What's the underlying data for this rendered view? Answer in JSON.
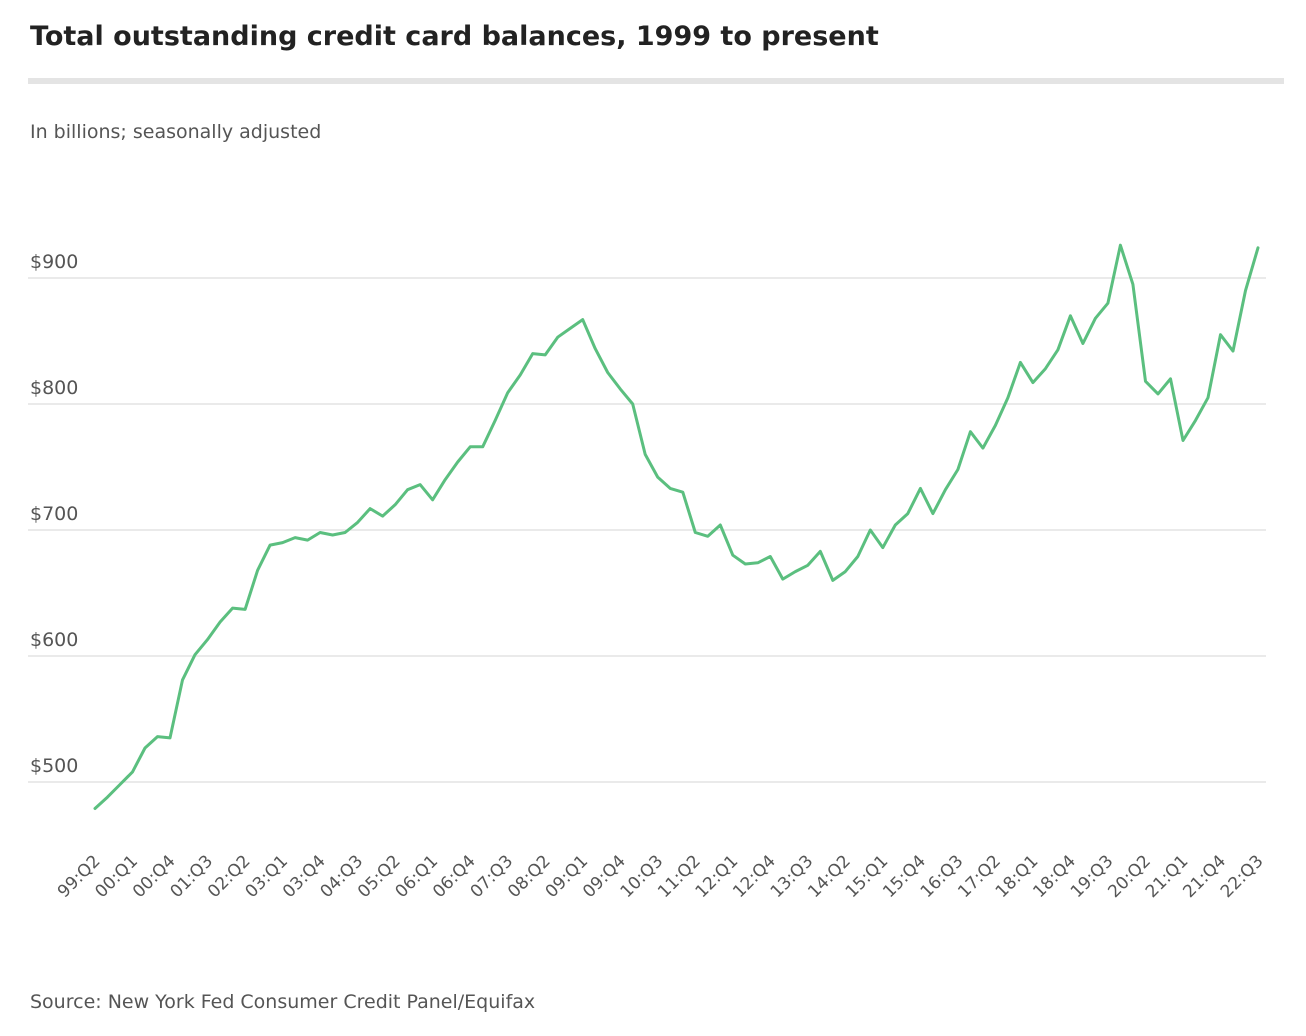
{
  "chart_data": {
    "type": "line",
    "title": "Total outstanding credit card balances, 1999 to present",
    "subtitle": "In billions; seasonally adjusted",
    "source": "Source: New York Fed Consumer Credit Panel/Equifax",
    "categories": [
      "99:Q2",
      null,
      null,
      "00:Q1",
      null,
      null,
      "00:Q4",
      null,
      null,
      "01:Q3",
      null,
      null,
      "02:Q2",
      null,
      null,
      "03:Q1",
      null,
      null,
      "03:Q4",
      null,
      null,
      "04:Q3",
      null,
      null,
      "05:Q2",
      null,
      null,
      "06:Q1",
      null,
      null,
      "06:Q4",
      null,
      null,
      "07:Q3",
      null,
      null,
      "08:Q2",
      null,
      null,
      "09:Q1",
      null,
      null,
      "09:Q4",
      null,
      null,
      "10:Q3",
      null,
      null,
      "11:Q2",
      null,
      null,
      "12:Q1",
      null,
      null,
      "12:Q4",
      null,
      null,
      "13:Q3",
      null,
      null,
      "14:Q2",
      null,
      null,
      "15:Q1",
      null,
      null,
      "15:Q4",
      null,
      null,
      "16:Q3",
      null,
      null,
      "17:Q2",
      null,
      null,
      "18:Q1",
      null,
      null,
      "18:Q4",
      null,
      null,
      "19:Q3",
      null,
      null,
      "20:Q2",
      null,
      null,
      "21:Q1",
      null,
      null,
      "21:Q4",
      null,
      null,
      "22:Q3"
    ],
    "values": [
      479,
      488,
      498,
      508,
      527,
      536,
      535,
      581,
      601,
      613,
      627,
      638,
      637,
      668,
      688,
      690,
      694,
      692,
      698,
      696,
      698,
      706,
      717,
      711,
      720,
      732,
      736,
      724,
      740,
      754,
      766,
      766,
      787,
      809,
      823,
      840,
      839,
      853,
      860,
      867,
      844,
      825,
      812,
      800,
      760,
      742,
      733,
      730,
      698,
      695,
      704,
      680,
      673,
      674,
      679,
      661,
      667,
      672,
      683,
      660,
      667,
      679,
      700,
      686,
      704,
      713,
      733,
      713,
      732,
      748,
      778,
      765,
      783,
      805,
      833,
      817,
      828,
      843,
      870,
      848,
      868,
      880,
      926,
      895,
      818,
      808,
      820,
      771,
      787,
      805,
      855,
      842,
      890,
      924
    ],
    "color": "#5bbf7f",
    "ylim": [
      450,
      950
    ],
    "yticks": [
      {
        "value": 500,
        "label": "$500"
      },
      {
        "value": 600,
        "label": "$600"
      },
      {
        "value": 700,
        "label": "$700"
      },
      {
        "value": 800,
        "label": "$800"
      },
      {
        "value": 900,
        "label": "$900"
      }
    ],
    "grid": true
  }
}
